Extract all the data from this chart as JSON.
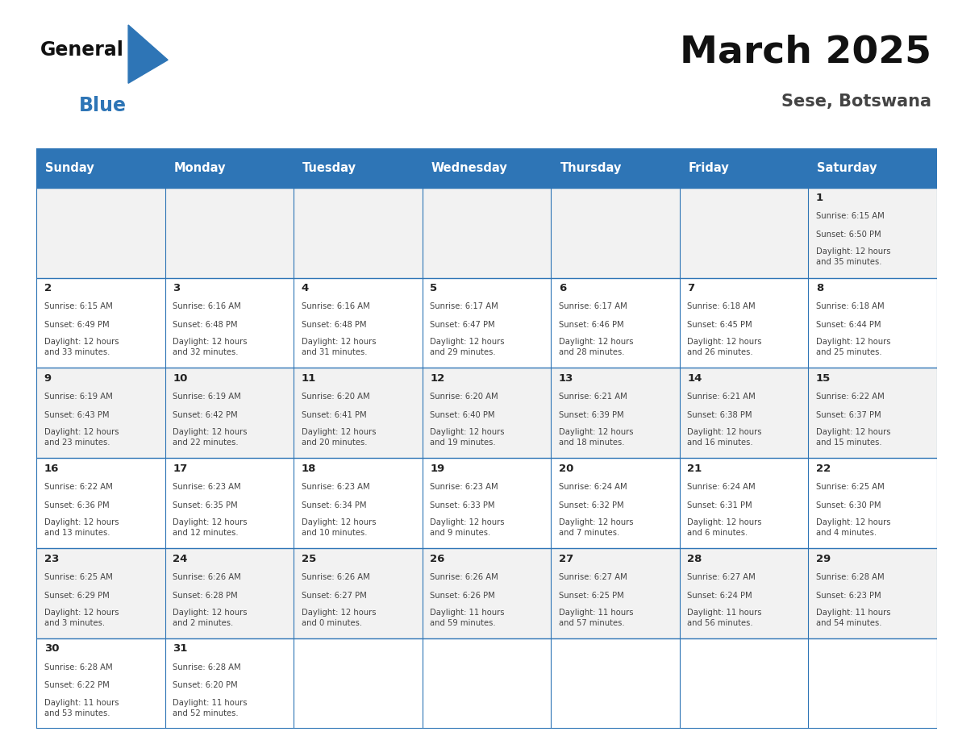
{
  "title": "March 2025",
  "subtitle": "Sese, Botswana",
  "header_color": "#2E75B6",
  "header_text_color": "#FFFFFF",
  "days_of_week": [
    "Sunday",
    "Monday",
    "Tuesday",
    "Wednesday",
    "Thursday",
    "Friday",
    "Saturday"
  ],
  "background_color": "#FFFFFF",
  "cell_bg_even": "#F2F2F2",
  "cell_bg_odd": "#FFFFFF",
  "border_color": "#2E75B6",
  "day_num_color": "#222222",
  "cell_text_color": "#444444",
  "calendar_data": [
    [
      null,
      null,
      null,
      null,
      null,
      null,
      {
        "day": 1,
        "sunrise": "6:15 AM",
        "sunset": "6:50 PM",
        "daylight": "12 hours\nand 35 minutes."
      }
    ],
    [
      {
        "day": 2,
        "sunrise": "6:15 AM",
        "sunset": "6:49 PM",
        "daylight": "12 hours\nand 33 minutes."
      },
      {
        "day": 3,
        "sunrise": "6:16 AM",
        "sunset": "6:48 PM",
        "daylight": "12 hours\nand 32 minutes."
      },
      {
        "day": 4,
        "sunrise": "6:16 AM",
        "sunset": "6:48 PM",
        "daylight": "12 hours\nand 31 minutes."
      },
      {
        "day": 5,
        "sunrise": "6:17 AM",
        "sunset": "6:47 PM",
        "daylight": "12 hours\nand 29 minutes."
      },
      {
        "day": 6,
        "sunrise": "6:17 AM",
        "sunset": "6:46 PM",
        "daylight": "12 hours\nand 28 minutes."
      },
      {
        "day": 7,
        "sunrise": "6:18 AM",
        "sunset": "6:45 PM",
        "daylight": "12 hours\nand 26 minutes."
      },
      {
        "day": 8,
        "sunrise": "6:18 AM",
        "sunset": "6:44 PM",
        "daylight": "12 hours\nand 25 minutes."
      }
    ],
    [
      {
        "day": 9,
        "sunrise": "6:19 AM",
        "sunset": "6:43 PM",
        "daylight": "12 hours\nand 23 minutes."
      },
      {
        "day": 10,
        "sunrise": "6:19 AM",
        "sunset": "6:42 PM",
        "daylight": "12 hours\nand 22 minutes."
      },
      {
        "day": 11,
        "sunrise": "6:20 AM",
        "sunset": "6:41 PM",
        "daylight": "12 hours\nand 20 minutes."
      },
      {
        "day": 12,
        "sunrise": "6:20 AM",
        "sunset": "6:40 PM",
        "daylight": "12 hours\nand 19 minutes."
      },
      {
        "day": 13,
        "sunrise": "6:21 AM",
        "sunset": "6:39 PM",
        "daylight": "12 hours\nand 18 minutes."
      },
      {
        "day": 14,
        "sunrise": "6:21 AM",
        "sunset": "6:38 PM",
        "daylight": "12 hours\nand 16 minutes."
      },
      {
        "day": 15,
        "sunrise": "6:22 AM",
        "sunset": "6:37 PM",
        "daylight": "12 hours\nand 15 minutes."
      }
    ],
    [
      {
        "day": 16,
        "sunrise": "6:22 AM",
        "sunset": "6:36 PM",
        "daylight": "12 hours\nand 13 minutes."
      },
      {
        "day": 17,
        "sunrise": "6:23 AM",
        "sunset": "6:35 PM",
        "daylight": "12 hours\nand 12 minutes."
      },
      {
        "day": 18,
        "sunrise": "6:23 AM",
        "sunset": "6:34 PM",
        "daylight": "12 hours\nand 10 minutes."
      },
      {
        "day": 19,
        "sunrise": "6:23 AM",
        "sunset": "6:33 PM",
        "daylight": "12 hours\nand 9 minutes."
      },
      {
        "day": 20,
        "sunrise": "6:24 AM",
        "sunset": "6:32 PM",
        "daylight": "12 hours\nand 7 minutes."
      },
      {
        "day": 21,
        "sunrise": "6:24 AM",
        "sunset": "6:31 PM",
        "daylight": "12 hours\nand 6 minutes."
      },
      {
        "day": 22,
        "sunrise": "6:25 AM",
        "sunset": "6:30 PM",
        "daylight": "12 hours\nand 4 minutes."
      }
    ],
    [
      {
        "day": 23,
        "sunrise": "6:25 AM",
        "sunset": "6:29 PM",
        "daylight": "12 hours\nand 3 minutes."
      },
      {
        "day": 24,
        "sunrise": "6:26 AM",
        "sunset": "6:28 PM",
        "daylight": "12 hours\nand 2 minutes."
      },
      {
        "day": 25,
        "sunrise": "6:26 AM",
        "sunset": "6:27 PM",
        "daylight": "12 hours\nand 0 minutes."
      },
      {
        "day": 26,
        "sunrise": "6:26 AM",
        "sunset": "6:26 PM",
        "daylight": "11 hours\nand 59 minutes."
      },
      {
        "day": 27,
        "sunrise": "6:27 AM",
        "sunset": "6:25 PM",
        "daylight": "11 hours\nand 57 minutes."
      },
      {
        "day": 28,
        "sunrise": "6:27 AM",
        "sunset": "6:24 PM",
        "daylight": "11 hours\nand 56 minutes."
      },
      {
        "day": 29,
        "sunrise": "6:28 AM",
        "sunset": "6:23 PM",
        "daylight": "11 hours\nand 54 minutes."
      }
    ],
    [
      {
        "day": 30,
        "sunrise": "6:28 AM",
        "sunset": "6:22 PM",
        "daylight": "11 hours\nand 53 minutes."
      },
      {
        "day": 31,
        "sunrise": "6:28 AM",
        "sunset": "6:20 PM",
        "daylight": "11 hours\nand 52 minutes."
      },
      null,
      null,
      null,
      null,
      null
    ]
  ]
}
